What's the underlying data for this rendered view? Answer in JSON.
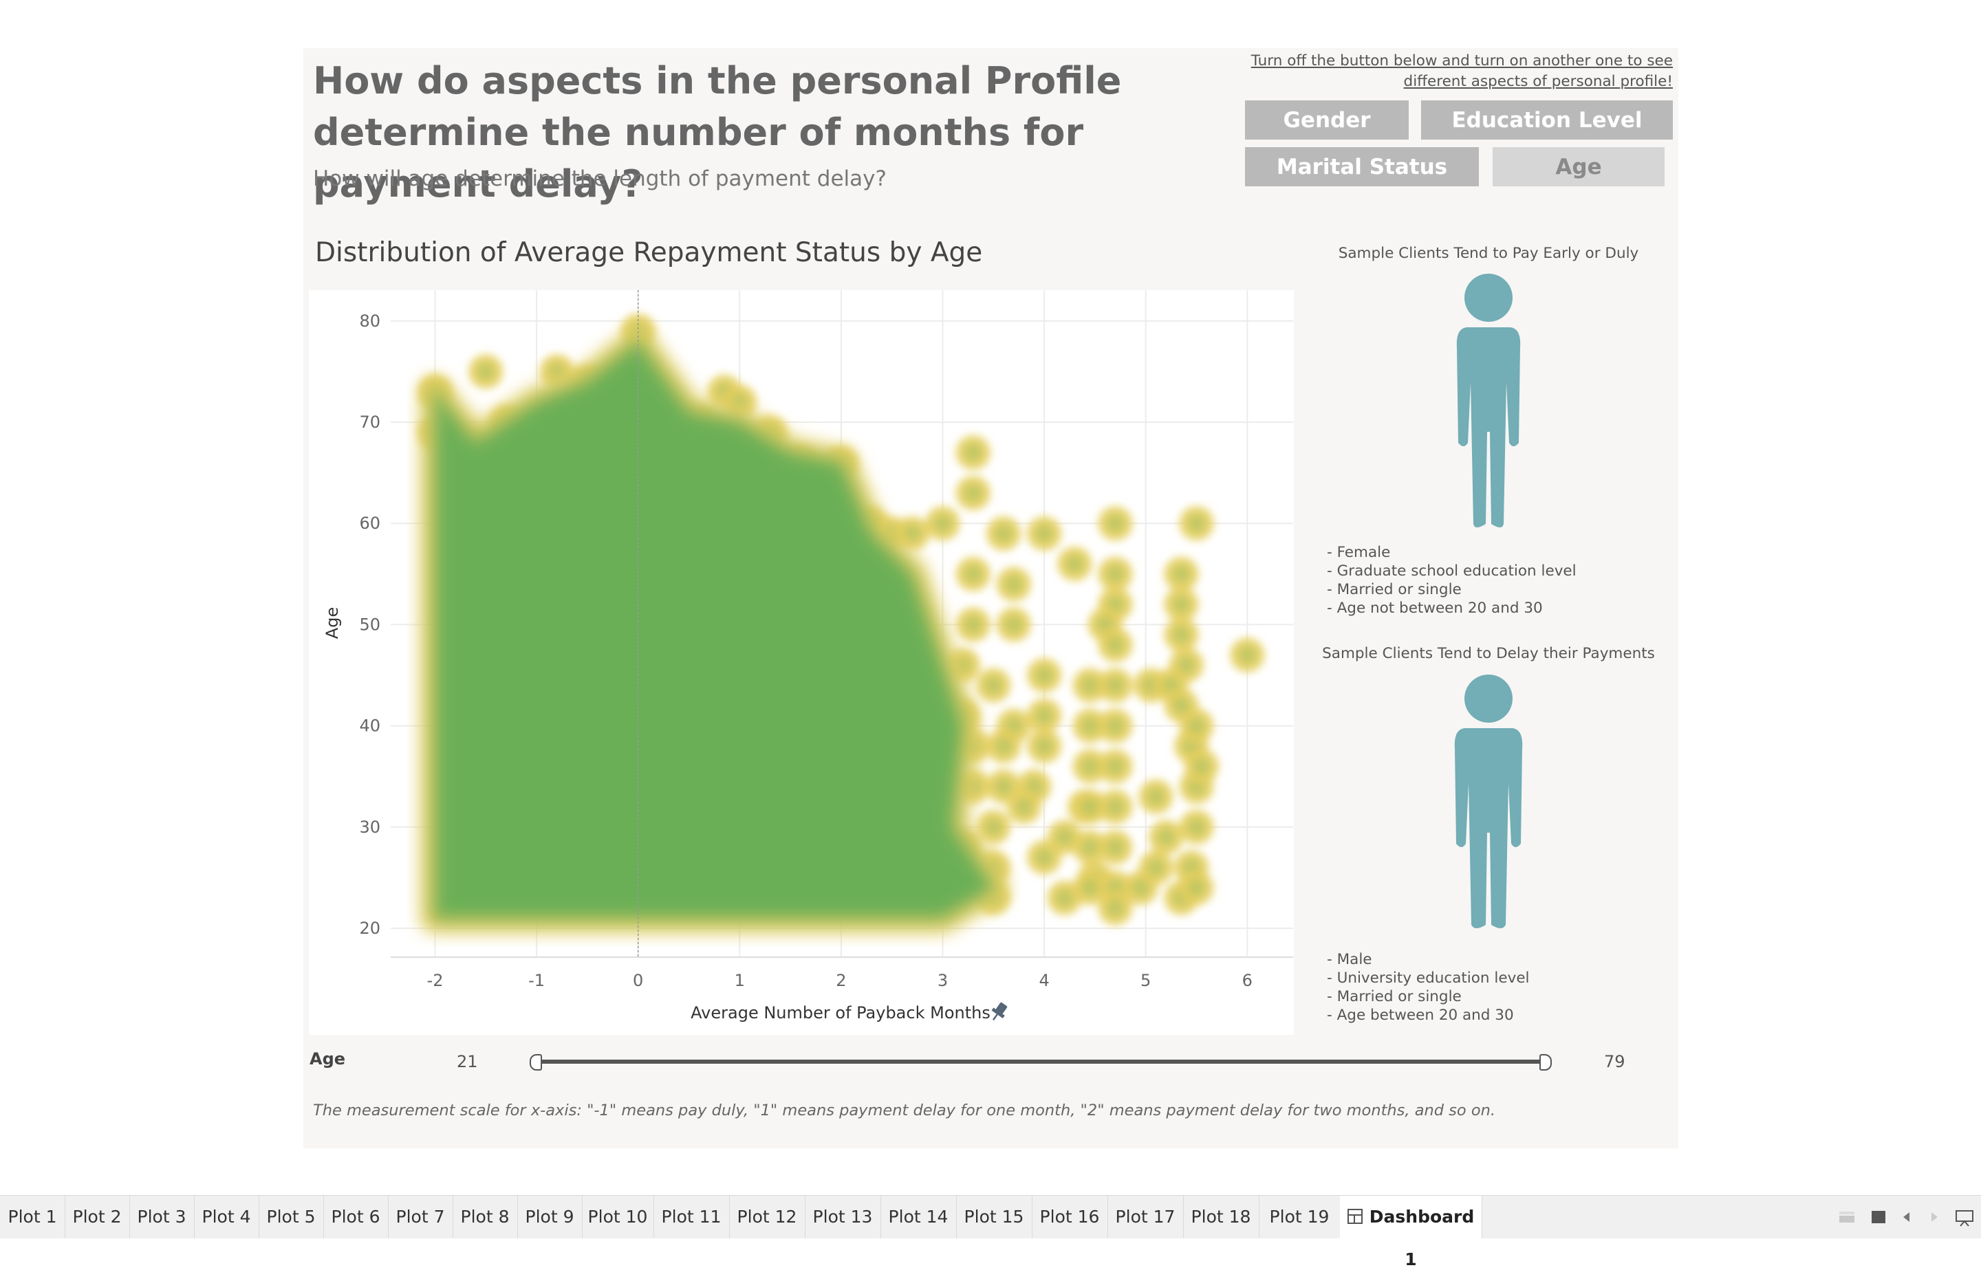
{
  "dashboard": {
    "title": "How do aspects in the personal Profile determine the number of months for payment delay?",
    "subtitle": "How will age determine the length of payment delay?",
    "instruction": "Turn off  the button below and turn on another one to see different  aspects of personal profile!",
    "toggles": {
      "gender": "Gender",
      "education": "Education Level",
      "marital": "Marital Status",
      "age": "Age"
    },
    "chart_title": "Distribution of Average Repayment Status by Age",
    "note": "The measurement scale for x-axis: \"-1\" means pay duly, \"1\" means payment delay for one month, \"2\" means payment delay for two months, and so on."
  },
  "profiles": {
    "early": {
      "caption": "Sample Clients Tend to Pay Early or Duly",
      "icon": "female-person-icon",
      "color": "#73adb5",
      "traits": [
        "- Female",
        "- Graduate school education level",
        "- Married or single",
        "- Age not between 20 and 30"
      ]
    },
    "delay": {
      "caption": "Sample Clients Tend to Delay their Payments",
      "icon": "male-person-icon",
      "color": "#73adb5",
      "traits": [
        "- Male",
        "- University education level",
        "- Married or single",
        "- Age between 20 and 30"
      ]
    }
  },
  "slider": {
    "label": "Age",
    "min": "21",
    "max": "79",
    "min_value": 21,
    "max_value": 79
  },
  "tabs": [
    "Plot 1",
    "Plot 2",
    "Plot 3",
    "Plot 4",
    "Plot 5",
    "Plot 6",
    "Plot 7",
    "Plot 8",
    "Plot 9",
    "Plot 10",
    "Plot 11",
    "Plot 12",
    "Plot 13",
    "Plot 14",
    "Plot 15",
    "Plot 16",
    "Plot 17",
    "Plot 18",
    "Plot 19",
    "Dashboard 1"
  ],
  "active_tab": "Dashboard 1",
  "chart_data": {
    "type": "scatter",
    "title": "Distribution of Average Repayment Status by Age",
    "xlabel": "Average Number of Payback Months",
    "ylabel": "Age",
    "xlim": [
      -2.5,
      6.5
    ],
    "ylim": [
      17,
      83
    ],
    "xticks": [
      -2,
      -1,
      0,
      1,
      2,
      3,
      4,
      5,
      6
    ],
    "yticks": [
      20,
      30,
      40,
      50,
      60,
      70,
      80
    ],
    "grid": true,
    "reference_line_x": 0,
    "colors": {
      "dense": "#6aaf57",
      "sparse": "#e6cf5e"
    },
    "dense_region": [
      [
        -2,
        21
      ],
      [
        -2,
        73
      ],
      [
        -1.6,
        68
      ],
      [
        -1,
        72
      ],
      [
        -0.5,
        74
      ],
      [
        0,
        78
      ],
      [
        0.5,
        71
      ],
      [
        1,
        70
      ],
      [
        1.5,
        67
      ],
      [
        2,
        66
      ],
      [
        2.3,
        59
      ],
      [
        2.7,
        55
      ],
      [
        3,
        46
      ],
      [
        3.2,
        40
      ],
      [
        3.1,
        30
      ],
      [
        3.5,
        24
      ],
      [
        3,
        21
      ]
    ],
    "points": [
      [
        -2,
        73
      ],
      [
        -2,
        69
      ],
      [
        -1.8,
        68
      ],
      [
        -1.5,
        75
      ],
      [
        -1.3,
        70
      ],
      [
        -0.8,
        75
      ],
      [
        -0.5,
        74
      ],
      [
        -0.4,
        71
      ],
      [
        0,
        79
      ],
      [
        0,
        75
      ],
      [
        0,
        73
      ],
      [
        0.3,
        71
      ],
      [
        0.6,
        70
      ],
      [
        0.85,
        73
      ],
      [
        1,
        72
      ],
      [
        1.3,
        69
      ],
      [
        1.6,
        66
      ],
      [
        2,
        66
      ],
      [
        2.3,
        60
      ],
      [
        2.5,
        59
      ],
      [
        2.7,
        59
      ],
      [
        3,
        60
      ],
      [
        3.3,
        67
      ],
      [
        3.3,
        63
      ],
      [
        3.6,
        59
      ],
      [
        4,
        59
      ],
      [
        4.3,
        56
      ],
      [
        4.7,
        60
      ],
      [
        5.5,
        60
      ],
      [
        4.7,
        55
      ],
      [
        4.7,
        52
      ],
      [
        4.6,
        50
      ],
      [
        4.7,
        48
      ],
      [
        5.35,
        55
      ],
      [
        5.35,
        52
      ],
      [
        5.35,
        49
      ],
      [
        5.4,
        46
      ],
      [
        6,
        47
      ],
      [
        3.3,
        55
      ],
      [
        3.3,
        50
      ],
      [
        3.7,
        54
      ],
      [
        3.7,
        50
      ],
      [
        3.2,
        46
      ],
      [
        3.5,
        44
      ],
      [
        3.2,
        41
      ],
      [
        3.7,
        40
      ],
      [
        3.3,
        38
      ],
      [
        3.6,
        38
      ],
      [
        3.6,
        34
      ],
      [
        3.3,
        34
      ],
      [
        3.9,
        34
      ],
      [
        4,
        45
      ],
      [
        4,
        41
      ],
      [
        4,
        38
      ],
      [
        3.8,
        32
      ],
      [
        4.2,
        29
      ],
      [
        4.2,
        23
      ],
      [
        4,
        27
      ],
      [
        4.5,
        25
      ],
      [
        4.4,
        32
      ],
      [
        3.5,
        30
      ],
      [
        3.5,
        26
      ],
      [
        3.5,
        23
      ],
      [
        3.2,
        28
      ],
      [
        4.45,
        44
      ],
      [
        4.45,
        40
      ],
      [
        4.45,
        36
      ],
      [
        4.45,
        32
      ],
      [
        4.45,
        28
      ],
      [
        4.45,
        24
      ],
      [
        4.7,
        44
      ],
      [
        4.7,
        40
      ],
      [
        4.7,
        36
      ],
      [
        4.7,
        32
      ],
      [
        4.7,
        28
      ],
      [
        4.7,
        24
      ],
      [
        4.7,
        22
      ],
      [
        4.95,
        24
      ],
      [
        5.05,
        44
      ],
      [
        5.25,
        44
      ],
      [
        5.35,
        42
      ],
      [
        5.45,
        38
      ],
      [
        5.5,
        34
      ],
      [
        5.5,
        30
      ],
      [
        5.45,
        26
      ],
      [
        5.35,
        23
      ],
      [
        5.1,
        26
      ],
      [
        5.1,
        33
      ],
      [
        5.2,
        29
      ],
      [
        5.5,
        24
      ],
      [
        5.5,
        40
      ],
      [
        5.55,
        36
      ]
    ]
  }
}
